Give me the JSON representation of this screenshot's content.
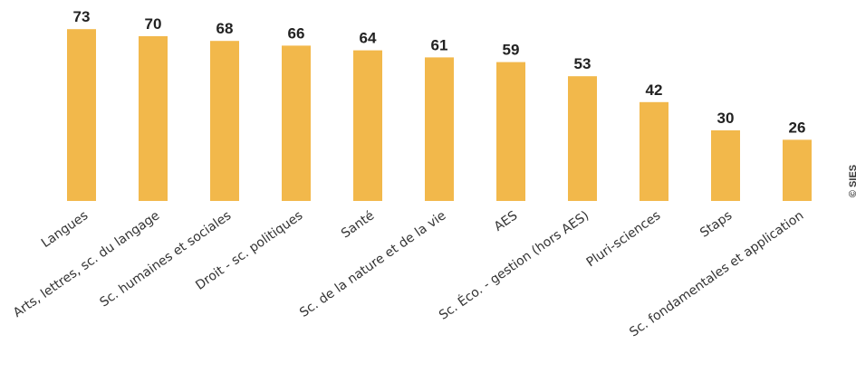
{
  "chart_data": {
    "type": "bar",
    "categories": [
      "Langues",
      "Arts, lettres, sc. du langage",
      "Sc. humaines et sociales",
      "Droit - sc. politiques",
      "Santé",
      "Sc. de la nature et de la vie",
      "AES",
      "Sc. Éco. - gestion (hors AES)",
      "Pluri-sciences",
      "Staps",
      "Sc. fondamentales et application"
    ],
    "values": [
      73,
      70,
      68,
      66,
      64,
      61,
      59,
      53,
      42,
      30,
      26
    ],
    "ylim": [
      0,
      80
    ],
    "grid": false,
    "legend": "none",
    "bar_color": "#F2B84B"
  },
  "credit": "© SIES"
}
